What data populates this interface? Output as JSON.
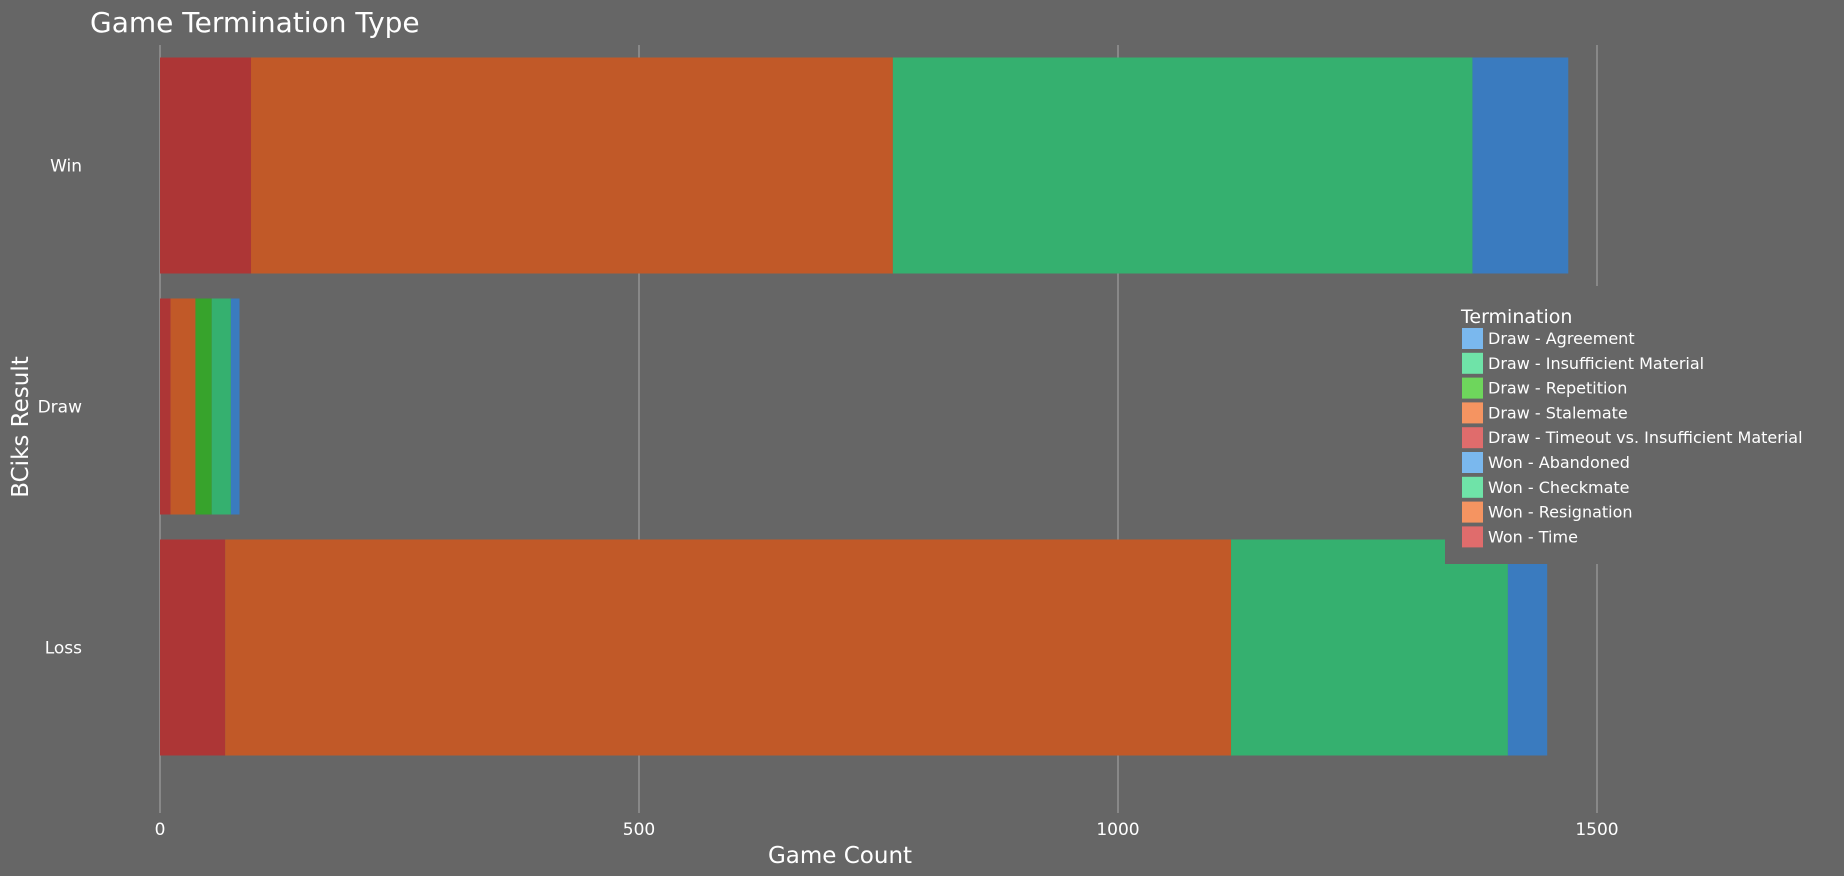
{
  "chart_data": {
    "type": "bar",
    "orientation": "horizontal",
    "stacked": true,
    "title": "Game Termination Type",
    "xlabel": "Game Count",
    "ylabel": "BCiks Result",
    "xlim": [
      0,
      1750
    ],
    "xticks": [
      0,
      500,
      1000,
      1500
    ],
    "grid": "vertical",
    "legend_position": "right",
    "legend_title": "Termination",
    "categories": [
      "Win",
      "Draw",
      "Loss"
    ],
    "series": [
      {
        "name": "Draw - Agreement",
        "color": "#7ab8ee",
        "bar_color": "#3a7bbf",
        "values": [
          0,
          9,
          0
        ]
      },
      {
        "name": "Draw - Insufficient Material",
        "color": "#6fe3a8",
        "bar_color": "#35b06f",
        "values": [
          0,
          20,
          0
        ]
      },
      {
        "name": "Draw - Repetition",
        "color": "#6ed65c",
        "bar_color": "#37a32c",
        "values": [
          0,
          17,
          0
        ]
      },
      {
        "name": "Draw - Stalemate",
        "color": "#f59461",
        "bar_color": "#c15928",
        "values": [
          0,
          26,
          0
        ]
      },
      {
        "name": "Draw - Timeout vs. Insufficient Material",
        "color": "#e06c6c",
        "bar_color": "#ad3636",
        "values": [
          0,
          11,
          0
        ]
      },
      {
        "name": "Won - Abandoned",
        "color": "#7ab8ee",
        "bar_color": "#3a7bbf",
        "values": [
          100,
          0,
          41
        ]
      },
      {
        "name": "Won - Checkmate",
        "color": "#6fe3a8",
        "bar_color": "#35b06f",
        "values": [
          605,
          0,
          289
        ]
      },
      {
        "name": "Won - Resignation",
        "color": "#f59461",
        "bar_color": "#c15928",
        "values": [
          670,
          0,
          1050
        ]
      },
      {
        "name": "Won - Time",
        "color": "#e06c6c",
        "bar_color": "#ad3636",
        "values": [
          95,
          0,
          68
        ]
      }
    ],
    "stack_order": [
      "Won - Time",
      "Draw - Timeout vs. Insufficient Material",
      "Won - Resignation",
      "Draw - Stalemate",
      "Draw - Repetition",
      "Won - Checkmate",
      "Draw - Insufficient Material",
      "Won - Abandoned",
      "Draw - Agreement"
    ]
  }
}
